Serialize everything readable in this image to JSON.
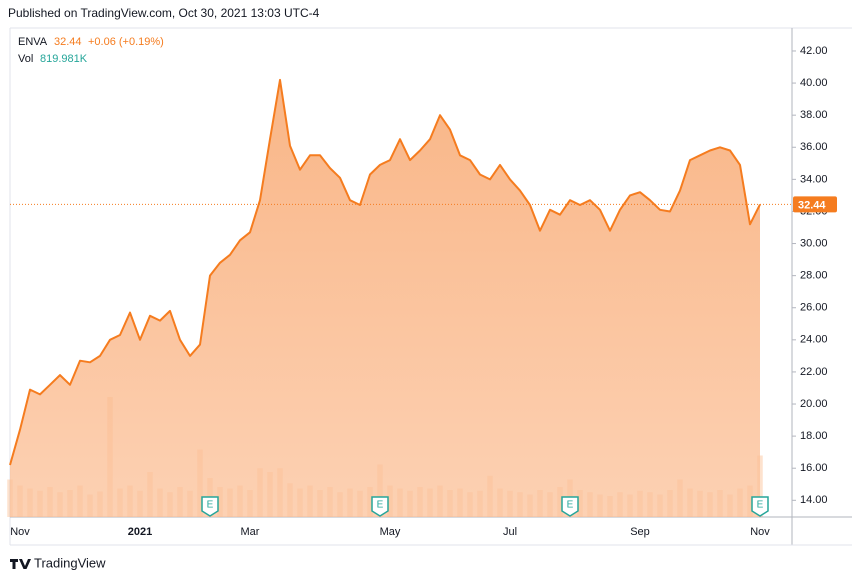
{
  "chart_data": {
    "type": "area",
    "published": "Published on TradingView.com, Oct 30, 2021 13:03 UTC-4",
    "symbol": "ENVA",
    "last_price": 32.44,
    "change": "+0.06 (+0.19%)",
    "volume_title": "Vol",
    "volume_last_label": "819.981K",
    "brand": "TradingView",
    "color": "#f57c1f",
    "categories": [
      null,
      "Nov",
      null,
      null,
      null,
      null,
      null,
      null,
      null,
      null,
      null,
      null,
      null,
      "2021",
      null,
      null,
      null,
      null,
      null,
      null,
      null,
      null,
      null,
      null,
      "Mar",
      null,
      null,
      null,
      null,
      null,
      null,
      null,
      null,
      null,
      null,
      null,
      null,
      null,
      "May",
      null,
      null,
      null,
      null,
      null,
      null,
      null,
      null,
      null,
      null,
      null,
      "Jul",
      null,
      null,
      null,
      null,
      null,
      null,
      null,
      null,
      null,
      null,
      null,
      null,
      "Sep",
      null,
      null,
      null,
      null,
      null,
      null,
      null,
      null,
      null,
      null,
      null,
      "Nov"
    ],
    "values": [
      16.2,
      18.4,
      20.9,
      20.6,
      21.2,
      21.8,
      21.2,
      22.7,
      22.6,
      23.0,
      24.0,
      24.3,
      25.7,
      24.0,
      25.5,
      25.2,
      25.8,
      24.0,
      23.0,
      23.7,
      28.0,
      28.8,
      29.3,
      30.2,
      30.7,
      32.7,
      36.5,
      40.2,
      36.1,
      34.6,
      35.5,
      35.5,
      34.7,
      34.1,
      32.7,
      32.4,
      34.3,
      34.9,
      35.2,
      36.5,
      35.2,
      35.8,
      36.5,
      38.0,
      37.1,
      35.5,
      35.2,
      34.3,
      34.0,
      34.9,
      34.0,
      33.3,
      32.4,
      30.8,
      32.1,
      31.8,
      32.7,
      32.4,
      32.7,
      32.1,
      30.8,
      32.1,
      33.0,
      33.2,
      32.7,
      32.1,
      32.0,
      33.3,
      35.2,
      35.5,
      35.8,
      36.0,
      35.8,
      34.9,
      31.2,
      32.44
    ],
    "volume": [
      500,
      420,
      380,
      350,
      400,
      330,
      360,
      420,
      300,
      340,
      1600,
      380,
      420,
      350,
      600,
      380,
      330,
      400,
      350,
      900,
      520,
      400,
      380,
      420,
      360,
      650,
      600,
      650,
      450,
      380,
      420,
      360,
      400,
      330,
      380,
      350,
      400,
      700,
      420,
      380,
      350,
      400,
      380,
      420,
      360,
      380,
      330,
      350,
      550,
      380,
      350,
      330,
      300,
      360,
      330,
      400,
      500,
      360,
      330,
      300,
      280,
      330,
      300,
      350,
      330,
      300,
      360,
      500,
      380,
      350,
      330,
      360,
      300,
      380,
      420,
      819.981
    ],
    "earnings": [
      {
        "at": 20,
        "label": "E"
      },
      {
        "at": 37,
        "label": "E"
      },
      {
        "at": 56,
        "label": "E"
      },
      {
        "at": 75,
        "label": "E"
      }
    ],
    "ylim": [
      12.96,
      43.12
    ],
    "yticks": [
      {
        "value": 14,
        "label": "14.00"
      },
      {
        "value": 16,
        "label": "16.00"
      },
      {
        "value": 18,
        "label": "18.00"
      },
      {
        "value": 20,
        "label": "20.00"
      },
      {
        "value": 22,
        "label": "22.00"
      },
      {
        "value": 24,
        "label": "24.00"
      },
      {
        "value": 26,
        "label": "26.00"
      },
      {
        "value": 28,
        "label": "28.00"
      },
      {
        "value": 30,
        "label": "30.00"
      },
      {
        "value": 32,
        "label": "32.00"
      },
      {
        "value": 34,
        "label": "34.00"
      },
      {
        "value": 36,
        "label": "36.00"
      },
      {
        "value": 38,
        "label": "38.00"
      },
      {
        "value": 40,
        "label": "40.00"
      },
      {
        "value": 42,
        "label": "42.00"
      }
    ]
  }
}
